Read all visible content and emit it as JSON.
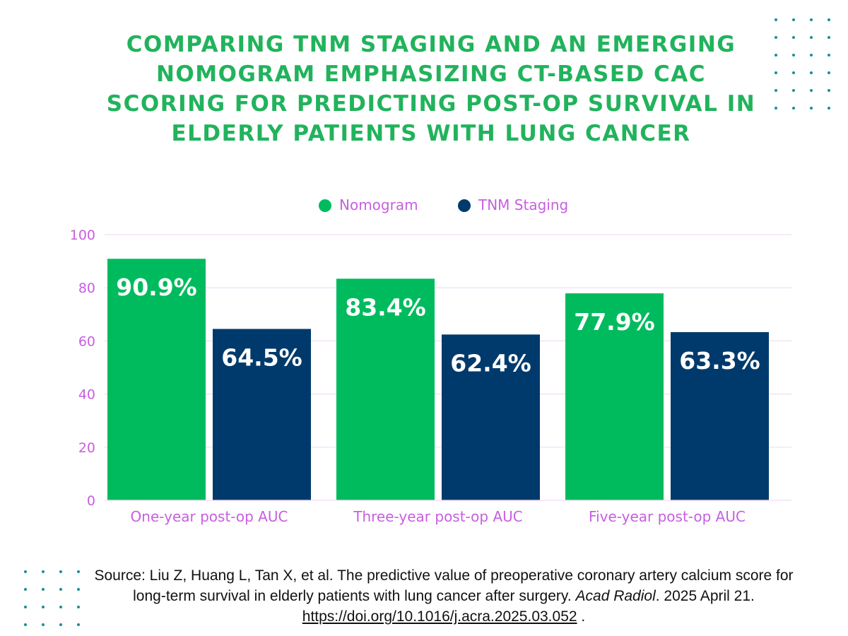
{
  "title": "COMPARING TNM STAGING AND AN EMERGING NOMOGRAM EMPHASIZING CT-BASED CAC SCORING FOR PREDICTING POST-OP SURVIVAL IN ELDERLY PATIENTS WITH LUNG CANCER",
  "colors": {
    "title": "#21b35c",
    "nomogram": "#00bb5e",
    "tnm": "#003a6c",
    "axis_text": "#c75fe0",
    "gridline": "#f1dcf5",
    "dots": "#1a8f94"
  },
  "chart_data": {
    "type": "bar",
    "categories": [
      "One-year post-op AUC",
      "Three-year post-op AUC",
      "Five-year post-op AUC"
    ],
    "series": [
      {
        "name": "Nomogram",
        "values": [
          90.9,
          83.4,
          77.9
        ],
        "labels": [
          "90.9%",
          "83.4%",
          "77.9%"
        ]
      },
      {
        "name": "TNM Staging",
        "values": [
          64.5,
          62.4,
          63.3
        ],
        "labels": [
          "64.5%",
          "62.4%",
          "63.3%"
        ]
      }
    ],
    "ylim": [
      0,
      100
    ],
    "yticks": [
      0,
      20,
      40,
      60,
      80,
      100
    ],
    "legend_position": "top-center",
    "grid": true
  },
  "source": {
    "prefix": "Source: Liu Z, Huang L, Tan X, et al. The predictive value of preoperative coronary artery calcium score for long-term survival in elderly patients with lung cancer after surgery. ",
    "journal": "Acad Radiol",
    "date": ". 2025 April 21. ",
    "link": "https://doi.org/10.1016/j.acra.2025.03.052",
    "suffix": " ."
  }
}
